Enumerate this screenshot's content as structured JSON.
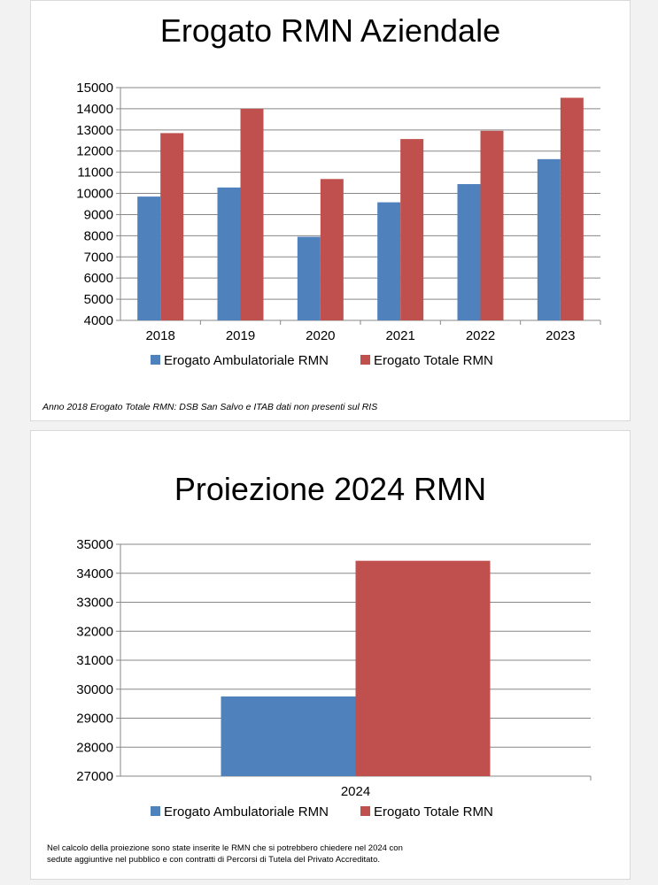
{
  "chart_data": [
    {
      "type": "bar",
      "title": "Erogato RMN Aziendale",
      "categories": [
        "2018",
        "2019",
        "2020",
        "2021",
        "2022",
        "2023"
      ],
      "series": [
        {
          "name": "Erogato Ambulatoriale RMN",
          "values": [
            9850,
            10280,
            7950,
            9580,
            10440,
            11620
          ]
        },
        {
          "name": "Erogato Totale RMN",
          "values": [
            12850,
            14000,
            10680,
            12570,
            12960,
            14520
          ]
        }
      ],
      "ylim": [
        4000,
        15000
      ],
      "yticks": [
        4000,
        5000,
        6000,
        7000,
        8000,
        9000,
        10000,
        11000,
        12000,
        13000,
        14000,
        15000
      ],
      "grid": true,
      "legend": "bottom",
      "note": "Anno 2018 Erogato Totale RMN: DSB San Salvo e ITAB dati non presenti sul RIS"
    },
    {
      "type": "bar",
      "title": "Proiezione 2024 RMN",
      "categories": [
        "2024"
      ],
      "series": [
        {
          "name": "Erogato Ambulatoriale RMN",
          "values": [
            29750
          ]
        },
        {
          "name": "Erogato Totale RMN",
          "values": [
            34430
          ]
        }
      ],
      "ylim": [
        27000,
        35000
      ],
      "yticks": [
        27000,
        28000,
        29000,
        30000,
        31000,
        32000,
        33000,
        34000,
        35000
      ],
      "grid": true,
      "legend": "bottom",
      "note_lines": [
        "Nel calcolo della proiezione sono state inserite le RMN che si potrebbero chiedere nel 2024 con",
        "sedute aggiuntive nel pubblico e con contratti di Percorsi di Tutela del Privato Accreditato."
      ]
    }
  ],
  "colors": {
    "series1": "#4f81bd",
    "series2": "#c0504d",
    "grid": "#878787",
    "axis": "#878787"
  }
}
